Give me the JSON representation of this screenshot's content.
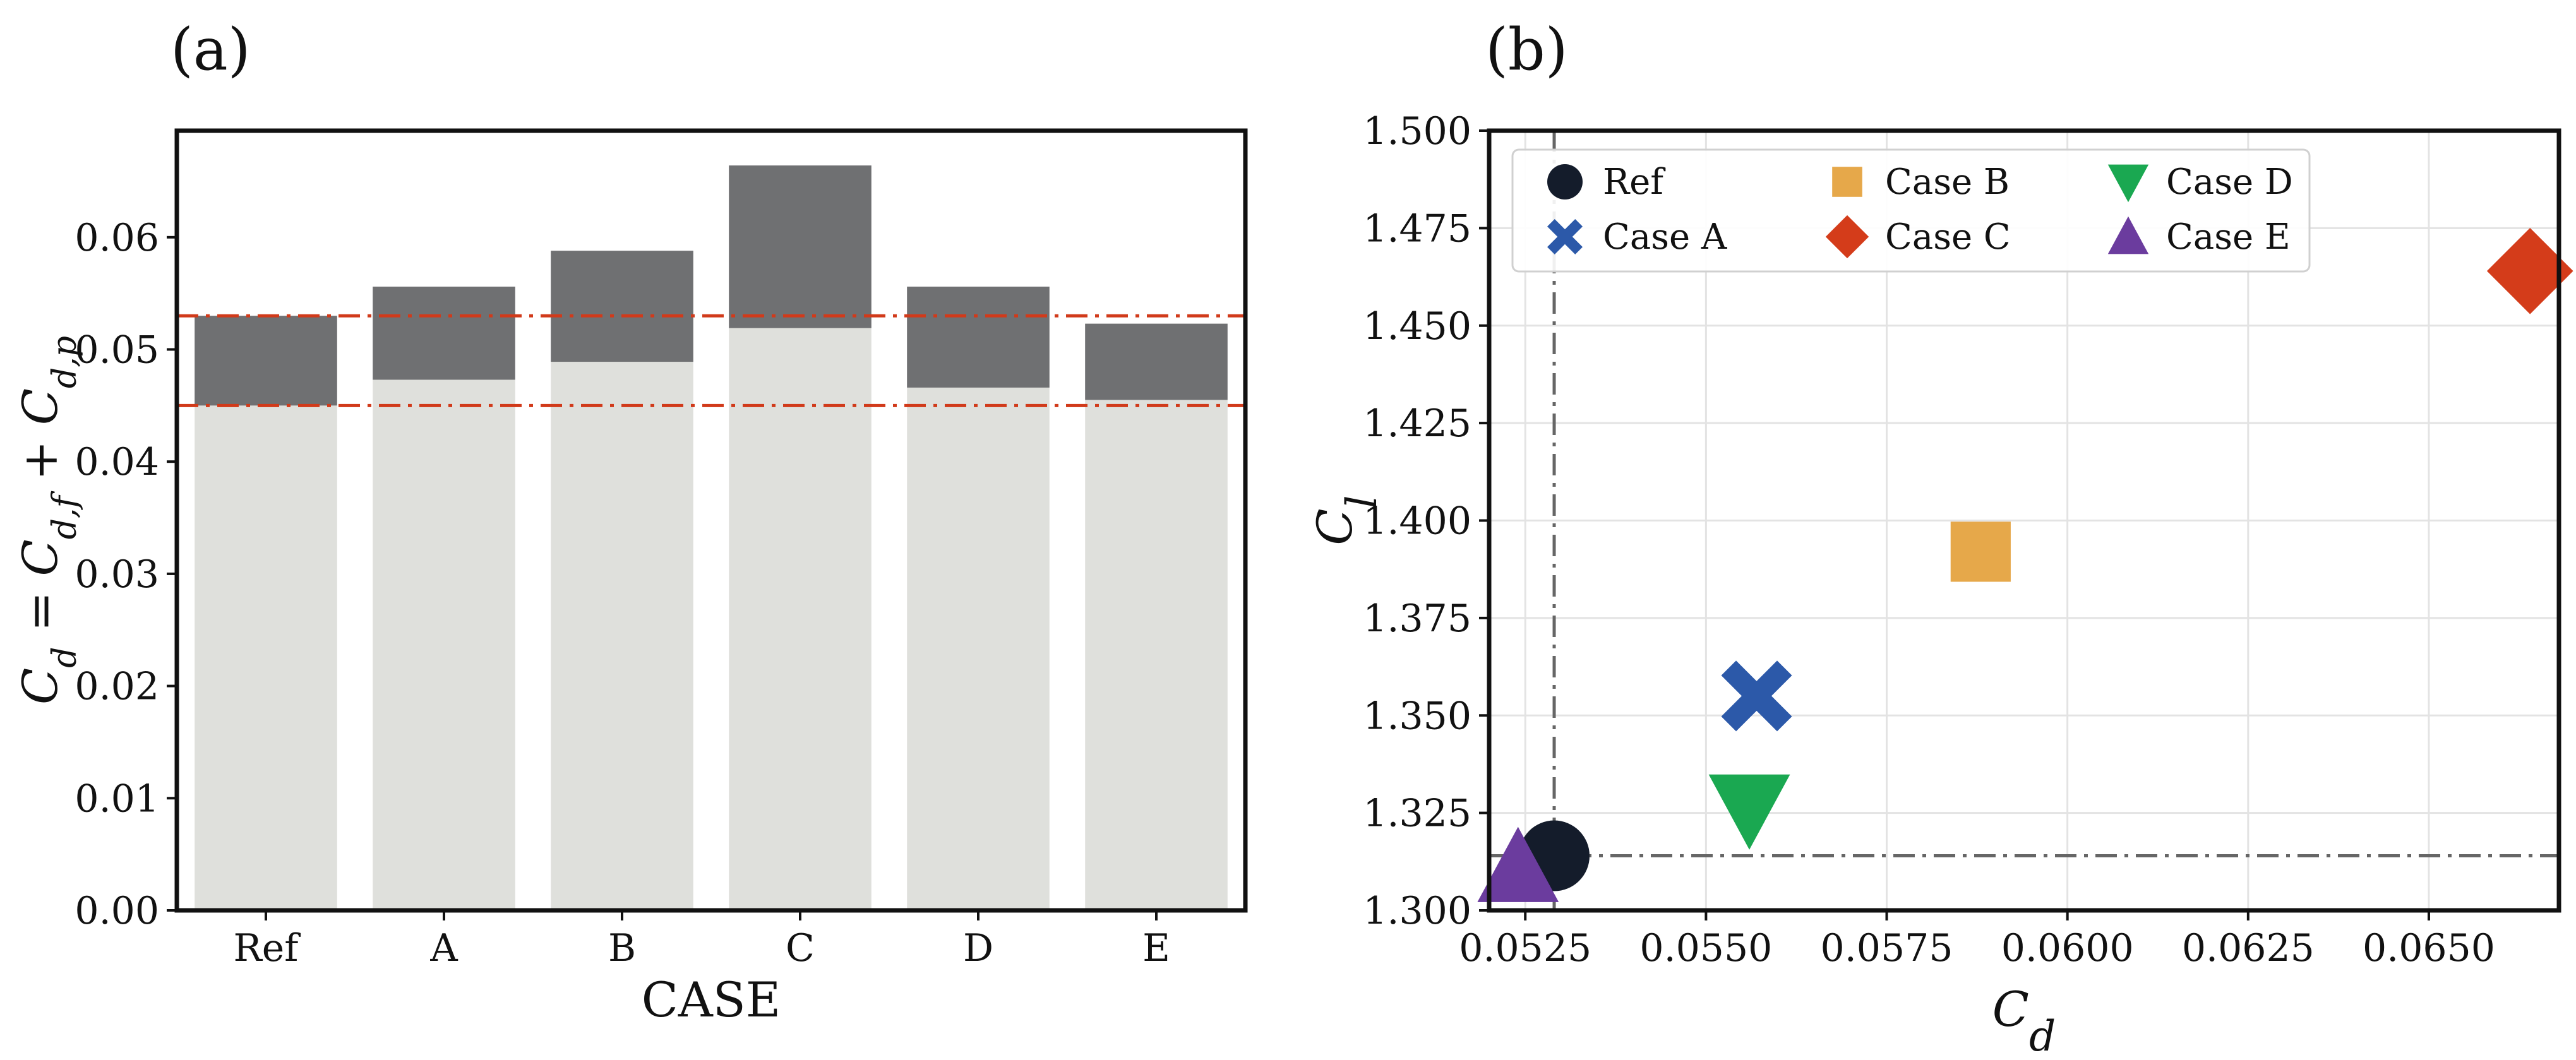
{
  "colors": {
    "cdf": "#dfe0dc",
    "cdp": "#6f7072",
    "ref_line": "#d13a1a",
    "ref_cross": "#666666",
    "grid": "#e3e3e3",
    "frame": "#111111"
  },
  "chart_data": [
    {
      "type": "bar",
      "panel_label": "(a)",
      "stacked": true,
      "categories": [
        "Ref",
        "A",
        "B",
        "C",
        "D",
        "E"
      ],
      "series": [
        {
          "key": "cdf",
          "values": [
            0.045,
            0.0473,
            0.0489,
            0.0519,
            0.0466,
            0.0455
          ]
        },
        {
          "key": "cdp",
          "values": [
            0.008,
            0.0083,
            0.0099,
            0.0145,
            0.009,
            0.0068
          ]
        }
      ],
      "xlabel": "CASE",
      "ylabel": "C_d = C_{d,f} + C_{d,p}",
      "ylim": [
        0,
        0.0695
      ],
      "yticks": [
        "0.00",
        "0.01",
        "0.02",
        "0.03",
        "0.04",
        "0.05",
        "0.06"
      ],
      "ref_lines": [
        0.045,
        0.053
      ],
      "grid": false
    },
    {
      "type": "scatter",
      "panel_label": "(b)",
      "xlabel": "C_d",
      "ylabel": "C_l",
      "xlim": [
        0.052,
        0.0668
      ],
      "ylim": [
        1.3,
        1.5
      ],
      "xticks": [
        "0.0525",
        "0.0550",
        "0.0575",
        "0.0600",
        "0.0625",
        "0.0650"
      ],
      "yticks": [
        "1.300",
        "1.325",
        "1.350",
        "1.375",
        "1.400",
        "1.425",
        "1.450",
        "1.475",
        "1.500"
      ],
      "grid": true,
      "legend_position": "top-left",
      "ref_cross": {
        "x": 0.0529,
        "y": 1.314
      },
      "series": [
        {
          "name": "Ref",
          "marker": "circle",
          "color": "#141c2b",
          "x": 0.0529,
          "y": 1.314
        },
        {
          "name": "Case A",
          "marker": "x",
          "color": "#2c59a9",
          "x": 0.0557,
          "y": 1.355
        },
        {
          "name": "Case B",
          "marker": "square",
          "color": "#e6a84a",
          "x": 0.0588,
          "y": 1.392
        },
        {
          "name": "Case C",
          "marker": "diamond",
          "color": "#d43c1a",
          "x": 0.0664,
          "y": 1.464
        },
        {
          "name": "Case D",
          "marker": "triangle-down",
          "color": "#1aa851",
          "x": 0.0556,
          "y": 1.326
        },
        {
          "name": "Case E",
          "marker": "triangle-up",
          "color": "#6b3c9e",
          "x": 0.0524,
          "y": 1.311
        }
      ]
    }
  ]
}
